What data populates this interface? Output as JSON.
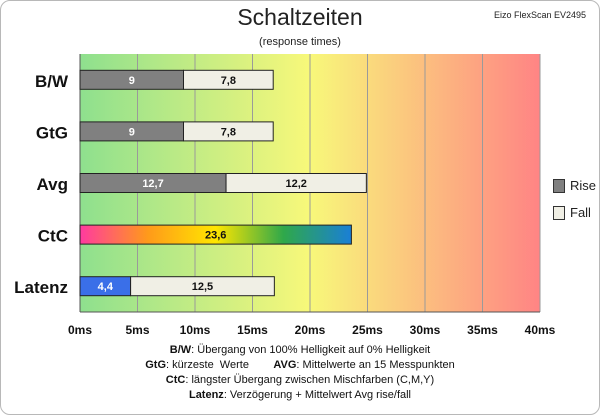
{
  "chart_data": {
    "type": "bar",
    "orientation": "horizontal",
    "stacked": true,
    "title": "Schaltzeiten",
    "subtitle": "(response times)",
    "source_label": "Eizo FlexScan EV2495",
    "categories": [
      "B/W",
      "GtG",
      "Avg",
      "CtC",
      "Latenz"
    ],
    "series": [
      {
        "name": "Rise",
        "values": [
          9,
          9,
          12.7,
          null,
          4.4
        ],
        "labels": [
          "9",
          "9",
          "12,7",
          "",
          "4,4"
        ]
      },
      {
        "name": "Fall",
        "values": [
          7.8,
          7.8,
          12.2,
          null,
          12.5
        ],
        "labels": [
          "7,8",
          "7,8",
          "12,2",
          "",
          "12,5"
        ]
      },
      {
        "name": "",
        "values": [
          null,
          null,
          null,
          23.6,
          null
        ],
        "labels": [
          "",
          "",
          "",
          "23,6",
          ""
        ]
      }
    ],
    "xlim": [
      0,
      40
    ],
    "x_ticks": [
      0,
      5,
      10,
      15,
      20,
      25,
      30,
      35,
      40
    ],
    "x_tick_labels": [
      "0ms",
      "5ms",
      "10ms",
      "15ms",
      "20ms",
      "25ms",
      "30ms",
      "35ms",
      "40ms"
    ],
    "grid": true,
    "legend_position": "right",
    "colors": {
      "rise": "#808080",
      "fall": "#f0efe5",
      "latenz_rise": "#3a6fe8",
      "ctc_gradient": [
        "#ff3aa0",
        "#ff9a1a",
        "#ffe600",
        "#2fa84a",
        "#1a7fd6"
      ],
      "background_gradient": [
        "#8ee08e",
        "#f8f87a",
        "#ff8484"
      ]
    }
  },
  "legend": [
    {
      "label": "Rise",
      "color": "#808080"
    },
    {
      "label": "Fall",
      "color": "#f0efe5"
    }
  ],
  "notes": [
    {
      "key": "B/W",
      "text": ":  Übergang von 100% Helligkeit auf 0% Helligkeit"
    },
    {
      "key": "GtG",
      "text": ": kürzeste  Werte        ",
      "key2": "AVG",
      "text2": ": Mittelwerte  an 15 Messpunkten"
    },
    {
      "key": "CtC",
      "text": ": längster Übergang  zwischen Mischfarben (C,M,Y)"
    },
    {
      "key": "Latenz",
      "text": ": Verzögerung  + Mittelwert  Avg rise/fall"
    }
  ]
}
